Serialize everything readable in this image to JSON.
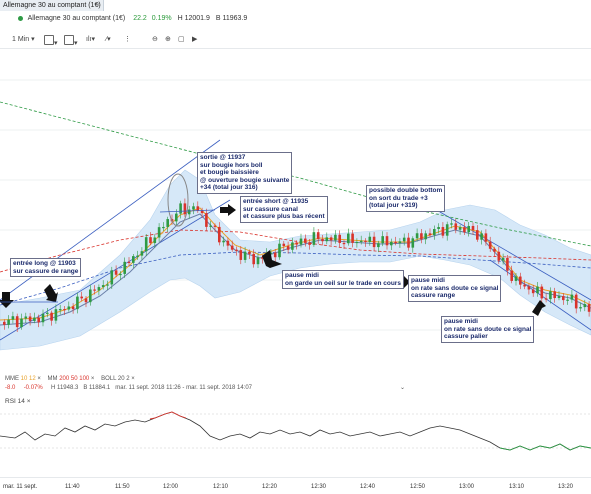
{
  "tab": {
    "title": "Allemagne 30 au comptant (1€)",
    "close": "×"
  },
  "header": {
    "instrument": "Allemagne 30 au comptant (1€)",
    "price": "22.2",
    "change_pct": "0.19%",
    "high": "H 12001.9",
    "low": "B 11963.9"
  },
  "toolbar": {
    "interval": "1 Min"
  },
  "colors": {
    "up": "#2e9a45",
    "down": "#d9332c",
    "band": "#cfe4f7",
    "box_border": "#6b6f8a",
    "annotation_text": "#1b2a6b"
  },
  "annotations": {
    "sortie": "sortie @ 11937\nsur bougie hors boll\net bougie baissière\n@ ouverture bougie suivante\n+34 (total jour 316)",
    "short": "entrée short @ 11935\nsur cassure canal\net cassure plus bas récent",
    "long": "entrée long @ 11903\nsur cassure de range",
    "double_bottom": "possible double bottom\non sort du trade +3\n(total jour +319)",
    "pause1": "pause midi\non garde un oeil sur le trade en cours",
    "pause2": "pause midi\non rate sans doute ce signal\ncassure range",
    "pause3": "pause midi\non rate sans doute ce signal\ncassure palier"
  },
  "legend": {
    "mme": "MME",
    "mme_vals": "10 12",
    "mm": "MM",
    "mm_vals": "200 50 100",
    "boll": "BOLL",
    "boll_vals": "20 2",
    "row2_a": "-8.0",
    "row2_b": "-0.07%",
    "row2_c": "H 11948.3",
    "row2_d": "B 11884.1",
    "row2_e": "mar. 11 sept. 2018 11:26 - mar. 11 sept. 2018 14:07"
  },
  "rsi": {
    "label": "RSI",
    "value": "14"
  },
  "xaxis": {
    "date": "mar. 11 sept.",
    "ticks": [
      "11:40",
      "11:50",
      "12:00",
      "12:10",
      "12:20",
      "12:30",
      "12:40",
      "12:50",
      "13:00",
      "13:10",
      "13:20"
    ]
  }
}
